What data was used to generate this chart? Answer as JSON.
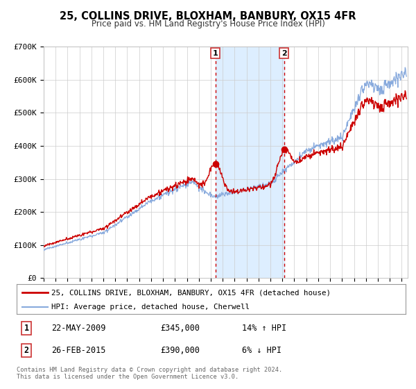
{
  "title": "25, COLLINS DRIVE, BLOXHAM, BANBURY, OX15 4FR",
  "subtitle": "Price paid vs. HM Land Registry's House Price Index (HPI)",
  "ylim": [
    0,
    700000
  ],
  "yticks": [
    0,
    100000,
    200000,
    300000,
    400000,
    500000,
    600000,
    700000
  ],
  "ytick_labels": [
    "£0",
    "£100K",
    "£200K",
    "£300K",
    "£400K",
    "£500K",
    "£600K",
    "£700K"
  ],
  "xlim_start": 1995.0,
  "xlim_end": 2025.5,
  "legend_line1": "25, COLLINS DRIVE, BLOXHAM, BANBURY, OX15 4FR (detached house)",
  "legend_line2": "HPI: Average price, detached house, Cherwell",
  "sale1_date": "22-MAY-2009",
  "sale1_price": "£345,000",
  "sale1_hpi": "14% ↑ HPI",
  "sale1_x": 2009.38,
  "sale1_y": 345000,
  "sale2_date": "26-FEB-2015",
  "sale2_price": "£390,000",
  "sale2_hpi": "6% ↓ HPI",
  "sale2_x": 2015.15,
  "sale2_y": 390000,
  "line_color_red": "#cc0000",
  "line_color_blue": "#88aadd",
  "shading_color": "#ddeeff",
  "vline_color": "#cc0000",
  "footer_text": "Contains HM Land Registry data © Crown copyright and database right 2024.\nThis data is licensed under the Open Government Licence v3.0.",
  "background_color": "#ffffff",
  "grid_color": "#cccccc"
}
